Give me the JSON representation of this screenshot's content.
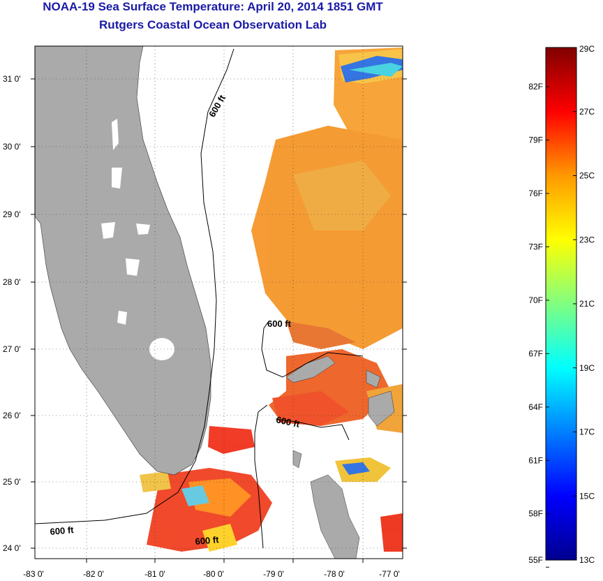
{
  "header": {
    "title": "NOAA-19 Sea Surface Temperature:  April 20, 2014 1851 GMT",
    "subtitle": "Rutgers Coastal Ocean Observation Lab"
  },
  "map": {
    "lon_ticks": [
      "-83 0'",
      "-82 0'",
      "-81 0'",
      "-80 0'",
      "-79 0'",
      "-78 0'",
      "-77 0'"
    ],
    "lat_ticks": [
      "31 0'",
      "30 0'",
      "29 0'",
      "28 0'",
      "27 0'",
      "26 0'",
      "25 0'",
      "24 0'"
    ],
    "lon_range": [
      -83,
      -77
    ],
    "lat_range": [
      23.8,
      31.4
    ],
    "contour_label": "600 ft",
    "land_color": "#aaaaaa",
    "cloud_color": "#ffffff"
  },
  "colorbar": {
    "celsius_labels": [
      "29C",
      "27C",
      "25C",
      "23C",
      "21C",
      "19C",
      "17C",
      "15C",
      "13C"
    ],
    "fahrenheit_labels": [
      "82F",
      "79F",
      "76F",
      "73F",
      "70F",
      "67F",
      "64F",
      "61F",
      "58F",
      "55F"
    ],
    "celsius_values": [
      29,
      27,
      25,
      23,
      21,
      19,
      17,
      15,
      13
    ],
    "fahrenheit_values": [
      82,
      79,
      76,
      73,
      70,
      67,
      64,
      61,
      58,
      55
    ],
    "min_c": 13,
    "max_c": 29,
    "colors": [
      "#00008f",
      "#0000ff",
      "#0080ff",
      "#00ffff",
      "#80ff80",
      "#ffff00",
      "#ff8000",
      "#ff0000",
      "#800000"
    ]
  }
}
